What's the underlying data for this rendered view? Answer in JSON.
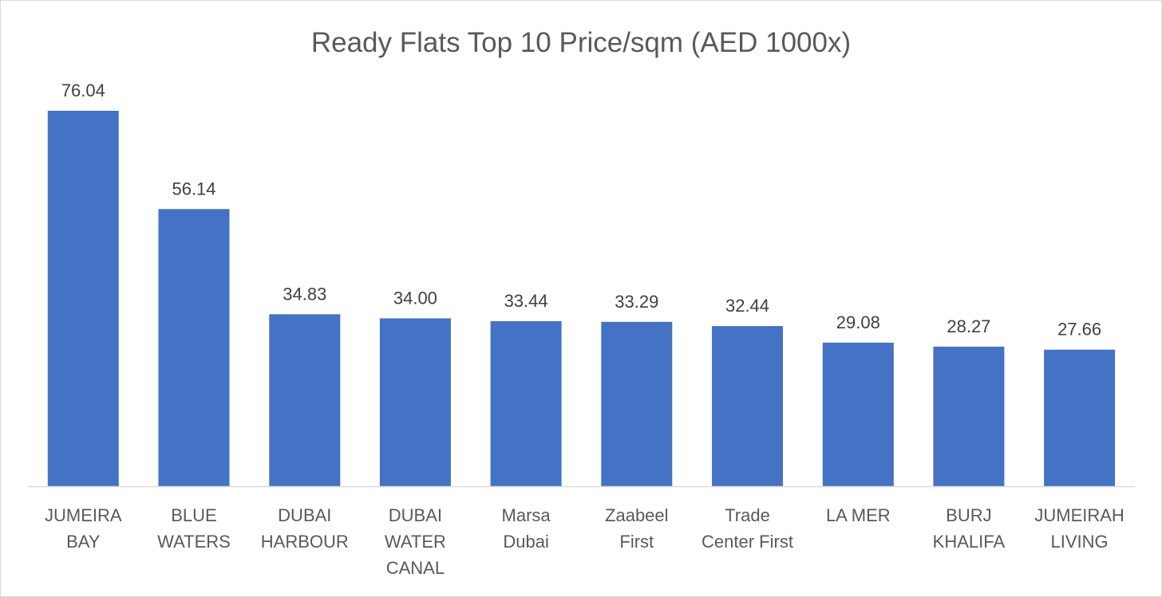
{
  "chart_data": {
    "type": "bar",
    "title": "Ready Flats Top 10 Price/sqm (AED 1000x)",
    "xlabel": "",
    "ylabel": "",
    "categories": [
      [
        "JUMEIRA",
        "BAY"
      ],
      [
        "BLUE",
        "WATERS"
      ],
      [
        "DUBAI",
        "HARBOUR"
      ],
      [
        "DUBAI",
        "WATER",
        "CANAL"
      ],
      [
        "Marsa",
        "Dubai"
      ],
      [
        "Zaabeel",
        "First"
      ],
      [
        "Trade",
        "Center First"
      ],
      [
        "LA MER"
      ],
      [
        "BURJ",
        "KHALIFA"
      ],
      [
        "JUMEIRAH",
        "LIVING"
      ]
    ],
    "values": [
      76.04,
      56.14,
      34.83,
      34.0,
      33.44,
      33.29,
      32.44,
      29.08,
      28.27,
      27.66
    ],
    "value_labels": [
      "76.04",
      "56.14",
      "34.83",
      "34.00",
      "33.44",
      "33.29",
      "32.44",
      "29.08",
      "28.27",
      "27.66"
    ],
    "ylim": [
      0,
      76.04
    ],
    "grid": false,
    "legend": "none",
    "bar_color": "#4472C4",
    "axis_color": "#d9d9d9"
  }
}
